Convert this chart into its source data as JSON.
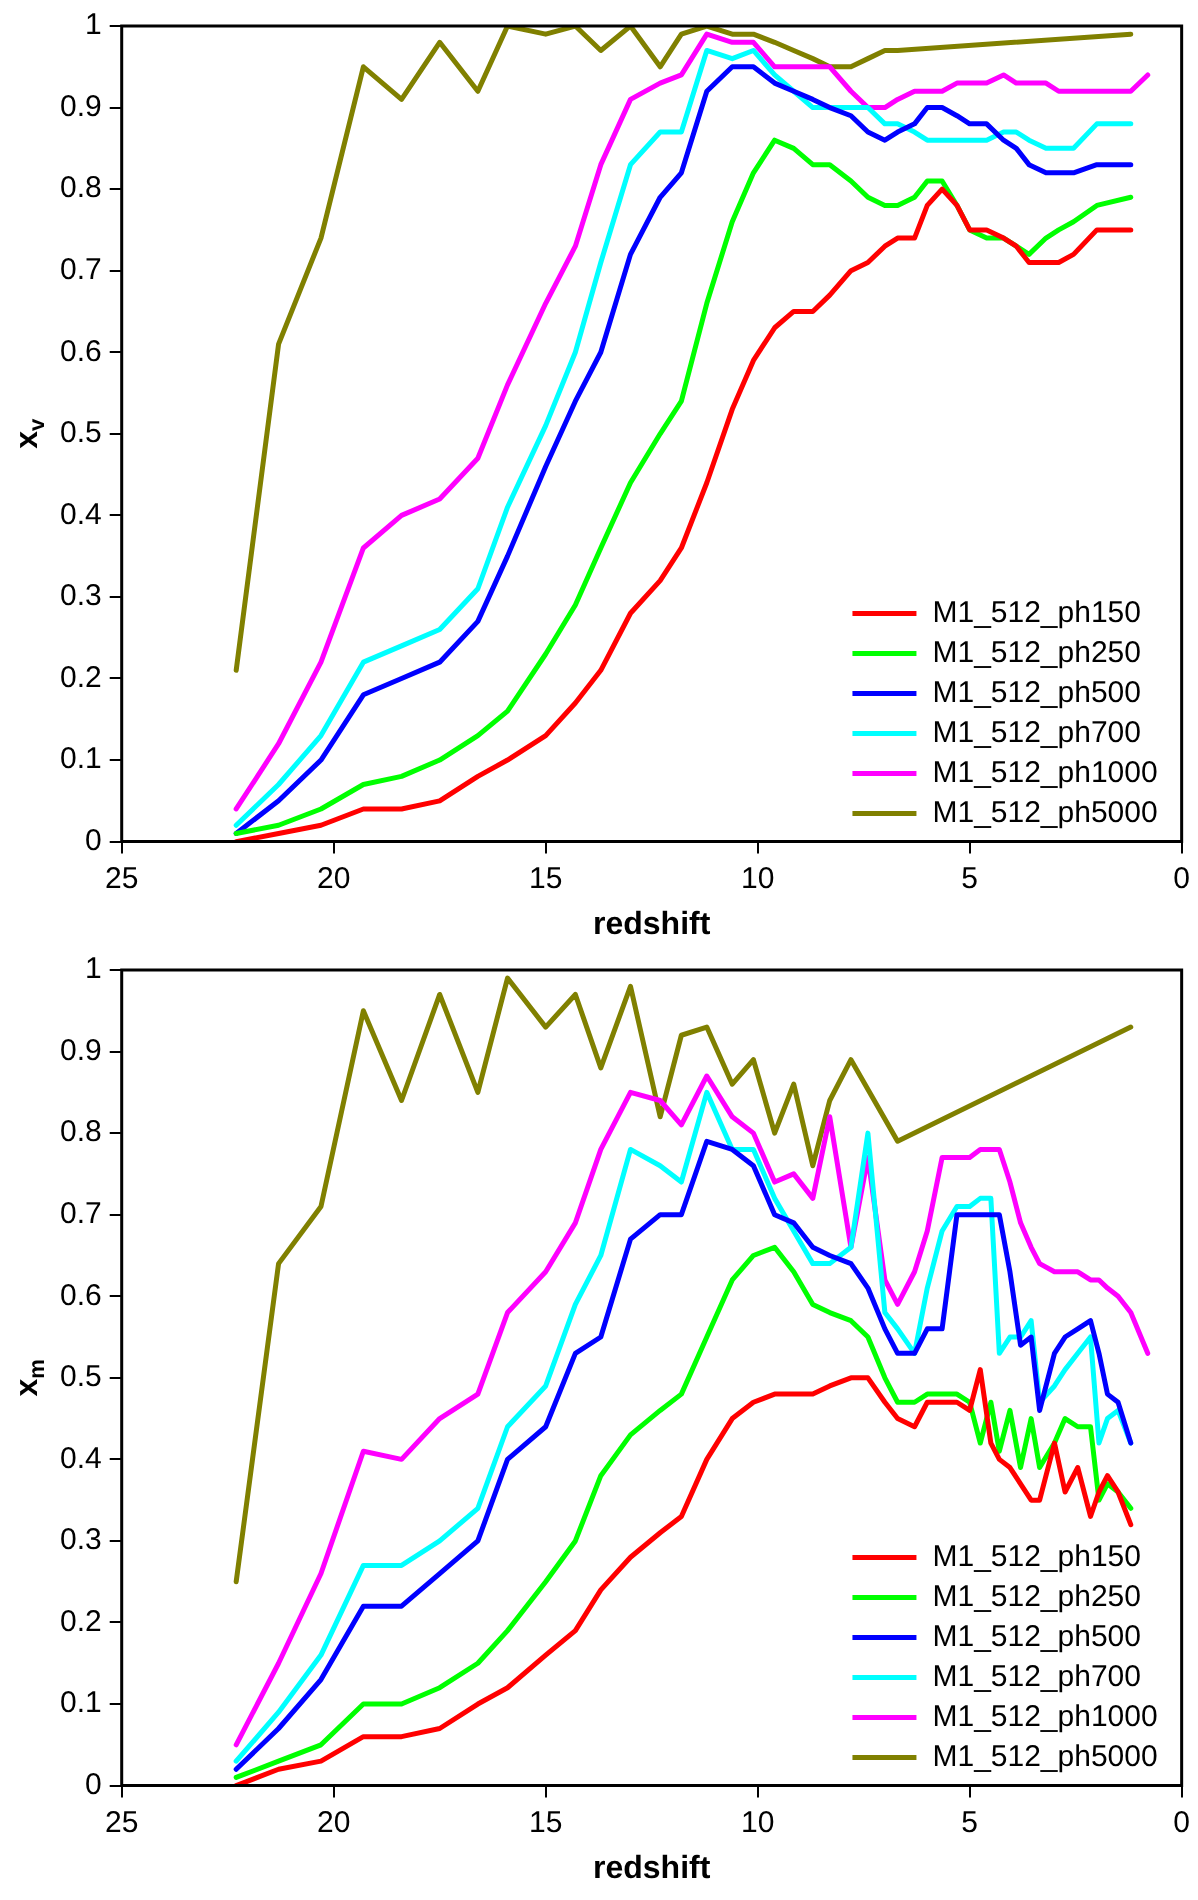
{
  "chart_data": [
    {
      "type": "line",
      "xlabel": "redshift",
      "ylabel": "x$_{v}$",
      "xlim": [
        25,
        0
      ],
      "ylim": [
        0,
        1
      ],
      "xticks": [
        25,
        20,
        15,
        10,
        5,
        0
      ],
      "yticks": [
        0,
        0.1,
        0.2,
        0.3,
        0.4,
        0.5,
        0.6,
        0.7,
        0.8,
        0.9,
        1
      ],
      "legend": "bottom right",
      "x": [
        22.3,
        21.3,
        20.3,
        19.3,
        18.4,
        17.5,
        16.6,
        15.9,
        15.0,
        14.3,
        13.7,
        13.0,
        12.3,
        11.8,
        11.2,
        10.6,
        10.1,
        9.6,
        9.15,
        8.7,
        8.3,
        7.8,
        7.4,
        7.0,
        6.7,
        6.3,
        6.0,
        5.65,
        5.3,
        5.0,
        4.6,
        4.2,
        3.9,
        3.6,
        3.2,
        2.9,
        2.55,
        2.0,
        1.2,
        0.8
      ],
      "series": [
        {
          "name": "M1_512_ph150",
          "color": "#ff0000",
          "values": [
            0,
            0.01,
            0.02,
            0.04,
            0.04,
            0.05,
            0.08,
            0.1,
            0.13,
            0.17,
            0.21,
            0.28,
            0.32,
            0.36,
            0.44,
            0.53,
            0.59,
            0.63,
            0.65,
            0.65,
            0.67,
            0.7,
            0.71,
            0.73,
            0.74,
            0.74,
            0.78,
            0.8,
            0.78,
            0.75,
            0.75,
            0.74,
            0.73,
            0.71,
            0.71,
            0.71,
            0.72,
            0.75,
            0.75,
            null
          ]
        },
        {
          "name": "M1_512_ph250",
          "color": "#00ff00",
          "values": [
            0.01,
            0.02,
            0.04,
            0.07,
            0.08,
            0.1,
            0.13,
            0.16,
            0.23,
            0.29,
            0.36,
            0.44,
            0.5,
            0.54,
            0.66,
            0.76,
            0.82,
            0.86,
            0.85,
            0.83,
            0.83,
            0.81,
            0.79,
            0.78,
            0.78,
            0.79,
            0.81,
            0.81,
            0.78,
            0.75,
            0.74,
            0.74,
            0.73,
            0.72,
            0.74,
            0.75,
            0.76,
            0.78,
            0.79,
            null
          ]
        },
        {
          "name": "M1_512_ph500",
          "color": "#0000ff",
          "values": [
            0.01,
            0.05,
            0.1,
            0.18,
            0.2,
            0.22,
            0.27,
            0.35,
            0.46,
            0.54,
            0.6,
            0.72,
            0.79,
            0.82,
            0.92,
            0.95,
            0.95,
            0.93,
            0.92,
            0.91,
            0.9,
            0.89,
            0.87,
            0.86,
            0.87,
            0.88,
            0.9,
            0.9,
            0.89,
            0.88,
            0.88,
            0.86,
            0.85,
            0.83,
            0.82,
            0.82,
            0.82,
            0.83,
            0.83,
            null
          ]
        },
        {
          "name": "M1_512_ph700",
          "color": "#00ffff",
          "values": [
            0.02,
            0.07,
            0.13,
            0.22,
            0.24,
            0.26,
            0.31,
            0.41,
            0.51,
            0.6,
            0.71,
            0.83,
            0.87,
            0.87,
            0.97,
            0.96,
            0.97,
            0.94,
            0.92,
            0.9,
            0.9,
            0.9,
            0.9,
            0.88,
            0.88,
            0.87,
            0.86,
            0.86,
            0.86,
            0.86,
            0.86,
            0.87,
            0.87,
            0.86,
            0.85,
            0.85,
            0.85,
            0.88,
            0.88,
            null
          ]
        },
        {
          "name": "M1_512_ph1000",
          "color": "#ff00ff",
          "values": [
            0.04,
            0.12,
            0.22,
            0.36,
            0.4,
            0.42,
            0.47,
            0.56,
            0.66,
            0.73,
            0.83,
            0.91,
            0.93,
            0.94,
            0.99,
            0.98,
            0.98,
            0.95,
            0.95,
            0.95,
            0.95,
            0.92,
            0.9,
            0.9,
            0.91,
            0.92,
            0.92,
            0.92,
            0.93,
            0.93,
            0.93,
            0.94,
            0.93,
            0.93,
            0.93,
            0.92,
            0.92,
            0.92,
            0.92,
            0.94
          ]
        },
        {
          "name": "M1_512_ph5000",
          "color": "#808000",
          "values": [
            0.21,
            0.61,
            0.74,
            0.95,
            0.91,
            0.98,
            0.92,
            1,
            0.99,
            1,
            0.97,
            1,
            0.95,
            0.99,
            1,
            0.99,
            0.99,
            0.98,
            0.97,
            0.96,
            0.95,
            0.95,
            0.96,
            0.97,
            0.97,
            null,
            null,
            null,
            null,
            null,
            null,
            null,
            null,
            null,
            null,
            null,
            null,
            null,
            0.99,
            null
          ]
        }
      ]
    },
    {
      "type": "line",
      "xlabel": "redshift",
      "ylabel": "x$_{m}$",
      "xlim": [
        25,
        0
      ],
      "ylim": [
        0,
        1
      ],
      "xticks": [
        25,
        20,
        15,
        10,
        5,
        0
      ],
      "yticks": [
        0,
        0.1,
        0.2,
        0.3,
        0.4,
        0.5,
        0.6,
        0.7,
        0.8,
        0.9,
        1
      ],
      "legend": "bottom right",
      "x": [
        22.3,
        21.3,
        20.3,
        19.3,
        18.4,
        17.5,
        16.6,
        15.9,
        15.0,
        14.3,
        13.7,
        13.0,
        12.3,
        11.8,
        11.2,
        10.6,
        10.1,
        9.6,
        9.15,
        8.7,
        8.3,
        7.8,
        7.4,
        7.0,
        6.7,
        6.3,
        6.0,
        5.65,
        5.3,
        5.0,
        4.75,
        4.5,
        4.3,
        4.05,
        3.8,
        3.55,
        3.35,
        3.0,
        2.75,
        2.45,
        2.15,
        1.95,
        1.75,
        1.5,
        1.2,
        0.8
      ],
      "series": [
        {
          "name": "M1_512_ph150",
          "color": "#ff0000",
          "values": [
            0,
            0.02,
            0.03,
            0.06,
            0.06,
            0.07,
            0.1,
            0.12,
            0.16,
            0.19,
            0.24,
            0.28,
            0.31,
            0.33,
            0.4,
            0.45,
            0.47,
            0.48,
            0.48,
            0.48,
            0.49,
            0.5,
            0.5,
            0.47,
            0.45,
            0.44,
            0.47,
            0.47,
            0.47,
            0.46,
            0.51,
            0.42,
            0.4,
            0.39,
            0.37,
            0.35,
            0.35,
            0.42,
            0.36,
            0.39,
            0.33,
            0.36,
            0.38,
            0.36,
            0.32,
            null
          ]
        },
        {
          "name": "M1_512_ph250",
          "color": "#00ff00",
          "values": [
            0.01,
            0.03,
            0.05,
            0.1,
            0.1,
            0.12,
            0.15,
            0.19,
            0.25,
            0.3,
            0.38,
            0.43,
            0.46,
            0.48,
            0.55,
            0.62,
            0.65,
            0.66,
            0.63,
            0.59,
            0.58,
            0.57,
            0.55,
            0.5,
            0.47,
            0.47,
            0.48,
            0.48,
            0.48,
            0.47,
            0.42,
            0.47,
            0.41,
            0.46,
            0.39,
            0.45,
            0.39,
            0.42,
            0.45,
            0.44,
            0.44,
            0.35,
            0.37,
            0.36,
            0.34,
            null
          ]
        },
        {
          "name": "M1_512_ph500",
          "color": "#0000ff",
          "values": [
            0.02,
            0.07,
            0.13,
            0.22,
            0.22,
            0.26,
            0.3,
            0.4,
            0.44,
            0.53,
            0.55,
            0.67,
            0.7,
            0.7,
            0.79,
            0.78,
            0.76,
            0.7,
            0.69,
            0.66,
            0.65,
            0.64,
            0.61,
            0.56,
            0.53,
            0.53,
            0.56,
            0.56,
            0.7,
            0.7,
            0.7,
            0.7,
            0.7,
            0.63,
            0.54,
            0.55,
            0.46,
            0.53,
            0.55,
            0.56,
            0.57,
            0.53,
            0.48,
            0.47,
            0.42,
            null
          ]
        },
        {
          "name": "M1_512_ph700",
          "color": "#00ffff",
          "values": [
            0.03,
            0.09,
            0.16,
            0.27,
            0.27,
            0.3,
            0.34,
            0.44,
            0.49,
            0.59,
            0.65,
            0.78,
            0.76,
            0.74,
            0.85,
            0.78,
            0.78,
            0.72,
            0.68,
            0.64,
            0.64,
            0.66,
            0.8,
            0.58,
            0.56,
            0.53,
            0.61,
            0.68,
            0.71,
            0.71,
            0.72,
            0.72,
            0.53,
            0.55,
            0.55,
            0.57,
            0.47,
            0.49,
            0.51,
            0.53,
            0.55,
            0.42,
            0.45,
            0.46,
            0.42,
            null
          ]
        },
        {
          "name": "M1_512_ph1000",
          "color": "#ff00ff",
          "values": [
            0.05,
            0.15,
            0.26,
            0.41,
            0.4,
            0.45,
            0.48,
            0.58,
            0.63,
            0.69,
            0.78,
            0.85,
            0.84,
            0.81,
            0.87,
            0.82,
            0.8,
            0.74,
            0.75,
            0.72,
            0.82,
            0.66,
            0.77,
            0.62,
            0.59,
            0.63,
            0.68,
            0.77,
            0.77,
            0.77,
            0.78,
            0.78,
            0.78,
            0.74,
            0.69,
            0.66,
            0.64,
            0.63,
            0.63,
            0.63,
            0.62,
            0.62,
            0.61,
            0.6,
            0.58,
            0.53
          ]
        },
        {
          "name": "M1_512_ph5000",
          "color": "#808000",
          "values": [
            0.25,
            0.64,
            0.71,
            0.95,
            0.84,
            0.97,
            0.85,
            0.99,
            0.93,
            0.97,
            0.88,
            0.98,
            0.82,
            0.92,
            0.93,
            0.86,
            0.89,
            0.8,
            0.86,
            0.76,
            0.84,
            0.89,
            null,
            null,
            0.79,
            null,
            null,
            null,
            null,
            null,
            null,
            null,
            null,
            null,
            null,
            null,
            null,
            null,
            null,
            null,
            null,
            null,
            null,
            null,
            0.93,
            null
          ]
        }
      ]
    }
  ]
}
